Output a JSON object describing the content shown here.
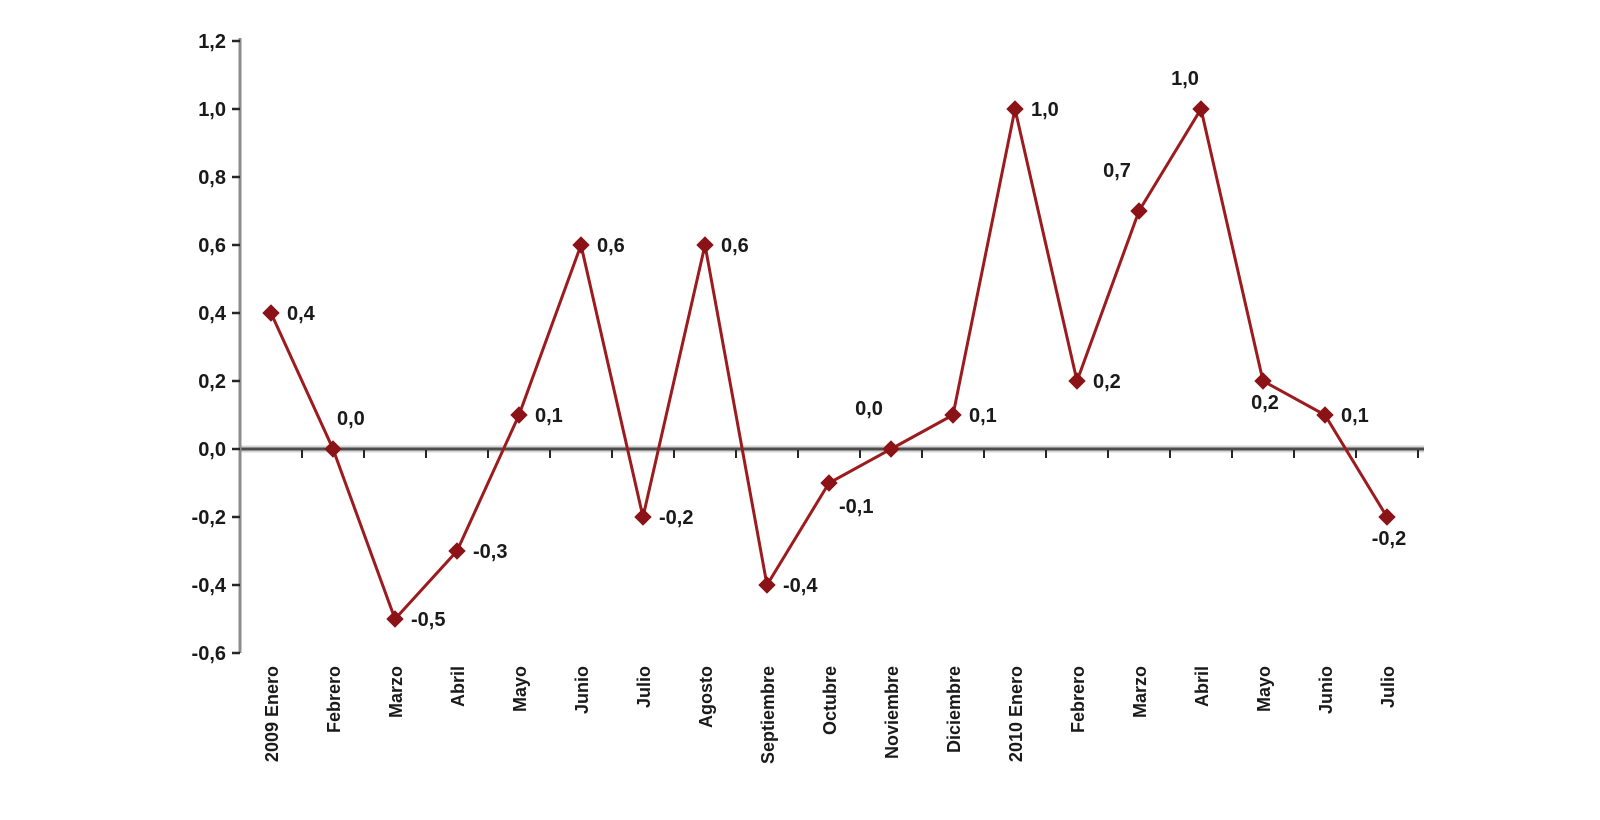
{
  "chart_data": {
    "type": "line",
    "title": "",
    "xlabel": "",
    "ylabel": "",
    "categories": [
      "2009 Enero",
      "Febrero",
      "Marzo",
      "Abril",
      "Mayo",
      "Junio",
      "Julio",
      "Agosto",
      "Septiembre",
      "Octubre",
      "Noviembre",
      "Diciembre",
      "2010 Enero",
      "Febrero",
      "Marzo",
      "Abril",
      "Mayo",
      "Junio",
      "Julio"
    ],
    "values": [
      0.4,
      0.0,
      -0.5,
      -0.3,
      0.1,
      0.6,
      -0.2,
      0.6,
      -0.4,
      -0.1,
      0.0,
      0.1,
      1.0,
      0.2,
      0.7,
      1.0,
      0.2,
      0.1,
      -0.2
    ],
    "point_labels": [
      "0,4",
      "0,0",
      "-0,5",
      "-0,3",
      "0,1",
      "0,6",
      "-0,2",
      "0,6",
      "-0,4",
      "-0,1",
      "0,0",
      "0,1",
      "1,0",
      "0,2",
      "0,7",
      "1,0",
      "0,2",
      "0,1",
      "-0,2"
    ],
    "label_positions": [
      "right",
      "above-right",
      "right",
      "right",
      "right",
      "right",
      "right",
      "right",
      "right",
      "below-right",
      "above-left",
      "right",
      "right",
      "right",
      "above-left",
      "above",
      "below",
      "right",
      "below"
    ],
    "ytick_labels": [
      "1,2",
      "1,0",
      "0,8",
      "0,6",
      "0,4",
      "0,2",
      "0,0",
      "-0,2",
      "-0,4",
      "-0,6"
    ],
    "ytick_values": [
      1.2,
      1.0,
      0.8,
      0.6,
      0.4,
      0.2,
      0.0,
      -0.2,
      -0.4,
      -0.6
    ],
    "ylim": [
      -0.6,
      1.2
    ],
    "decimal_separator": ",",
    "grid": false,
    "legend": "none",
    "marker_shape": "diamond",
    "colors": {
      "line": "#9C1B1E",
      "marker": "#8B1216",
      "text": "#1A1A1A",
      "y_axis_line": "#8C8C8C",
      "zero_line": "#4D4D4D",
      "zero_line_halo": "#D6D6D6",
      "tick": "#262626",
      "background": "#FFFFFF"
    }
  }
}
